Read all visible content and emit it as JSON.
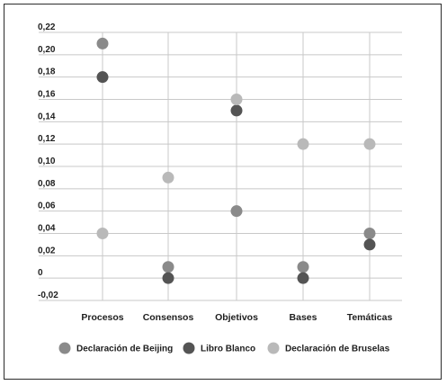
{
  "chart_data": {
    "type": "scatter",
    "title": "",
    "xlabel": "",
    "ylabel": "",
    "categories": [
      "Procesos",
      "Consensos",
      "Objetivos",
      "Bases",
      "Temáticas"
    ],
    "y_ticks": [
      "0,22",
      "0,20",
      "0,18",
      "0,16",
      "0,14",
      "0,12",
      "0,10",
      "0,08",
      "0,06",
      "0,04",
      "0,02",
      "0",
      "-0,02"
    ],
    "ylim": [
      -0.02,
      0.22
    ],
    "grid": true,
    "legend_position": "bottom",
    "series": [
      {
        "name": "Declaración de Beijing",
        "color": "#8a8a8a",
        "values": [
          0.21,
          0.01,
          0.06,
          0.01,
          0.04
        ]
      },
      {
        "name": "Libro Blanco",
        "color": "#545454",
        "values": [
          0.18,
          0.0,
          0.15,
          0.0,
          0.03
        ]
      },
      {
        "name": "Declaración de Bruselas",
        "color": "#b9b9b9",
        "values": [
          0.04,
          0.09,
          0.16,
          0.12,
          0.12
        ]
      }
    ]
  }
}
